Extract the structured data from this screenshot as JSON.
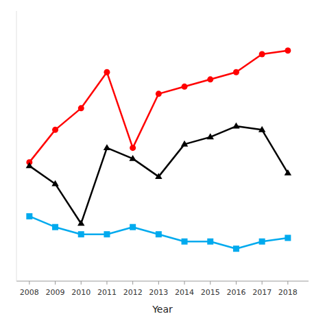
{
  "chart_data": {
    "type": "line",
    "xlabel": "Year",
    "x": [
      2008,
      2009,
      2010,
      2011,
      2012,
      2013,
      2014,
      2015,
      2016,
      2017,
      2018
    ],
    "series": [
      {
        "color": "#FF0000",
        "marker": "circle",
        "values": [
          38,
          47,
          53,
          63,
          42,
          57,
          59,
          61,
          63,
          68,
          69
        ]
      },
      {
        "color": "#000000",
        "marker": "triangle",
        "values": [
          37,
          32,
          21,
          42,
          39,
          34,
          43,
          45,
          48,
          47,
          35
        ]
      },
      {
        "color": "#00AAEE",
        "marker": "square",
        "values": [
          23,
          20,
          18,
          18,
          20,
          18,
          16,
          16,
          14,
          16,
          17
        ]
      }
    ],
    "xlim": [
      2007.5,
      2018.8
    ],
    "xticks": [
      2008,
      2009,
      2010,
      2011,
      2012,
      2013,
      2014,
      2015,
      2016,
      2017,
      2018
    ],
    "ylim": [
      5,
      80
    ],
    "tick_labels": "x",
    "grid": false
  }
}
